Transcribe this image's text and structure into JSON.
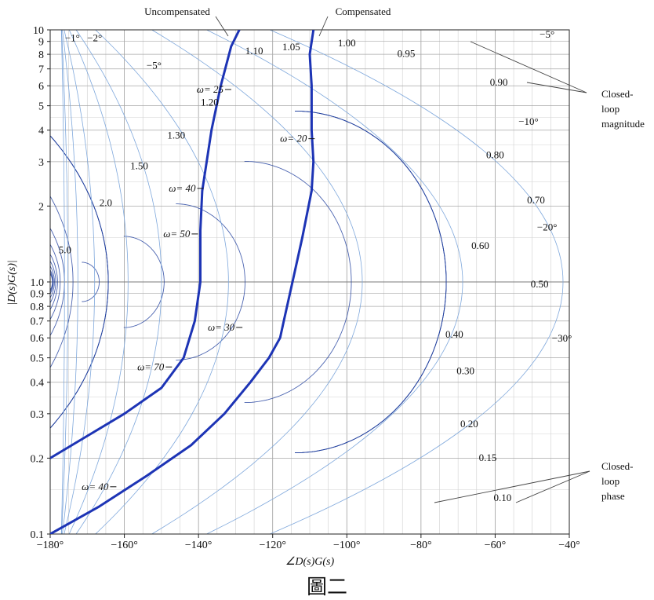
{
  "figure_caption": "圖二",
  "chart_data": {
    "type": "line",
    "chart_kind": "Nichols chart",
    "xlabel": "∠D(s)G(s)",
    "ylabel": "|D(s)G(s)|",
    "x_ticks": [
      -180,
      -160,
      -140,
      -120,
      -100,
      -80,
      -60,
      -40
    ],
    "x_tick_labels": [
      "−180°",
      "−160°",
      "−140°",
      "−120°",
      "−100°",
      "−80°",
      "−60°",
      "−40°"
    ],
    "y_ticks": [
      0.1,
      0.2,
      0.3,
      0.4,
      0.5,
      0.6,
      0.7,
      0.8,
      0.9,
      1.0,
      2,
      3,
      4,
      5,
      6,
      7,
      8,
      9,
      10
    ],
    "y_tick_labels": [
      "0.1",
      "0.2",
      "0.3",
      "0.4",
      "0.5",
      "0.6",
      "0.7",
      "0.8",
      "0.9",
      "1.0",
      "2",
      "3",
      "4",
      "5",
      "6",
      "7",
      "8",
      "9",
      "10"
    ],
    "xlim": [
      -180,
      -40
    ],
    "ylim": [
      0.1,
      10
    ],
    "yscale": "log",
    "grid": true,
    "closed_loop_magnitude_contours": [
      {
        "label": "1.10",
        "value": 1.1,
        "label_at": [
          -125,
          8.0
        ]
      },
      {
        "label": "1.05",
        "value": 1.05,
        "label_at": [
          -115,
          8.3
        ]
      },
      {
        "label": "1.00",
        "value": 1.0,
        "label_at": [
          -100,
          8.6
        ]
      },
      {
        "label": "0.95",
        "value": 0.95,
        "label_at": [
          -84,
          7.8
        ]
      },
      {
        "label": "0.90",
        "value": 0.9,
        "label_at": [
          -59,
          6.0
        ]
      },
      {
        "label": "0.80",
        "value": 0.8,
        "label_at": [
          -60,
          3.1
        ]
      },
      {
        "label": "0.70",
        "value": 0.7,
        "label_at": [
          -49,
          2.05
        ]
      },
      {
        "label": "0.60",
        "value": 0.6,
        "label_at": [
          -64,
          1.35
        ]
      },
      {
        "label": "0.50",
        "value": 0.5,
        "label_at": [
          -48,
          0.95
        ]
      },
      {
        "label": "0.40",
        "value": 0.4,
        "label_at": [
          -71,
          0.6
        ]
      },
      {
        "label": "0.30",
        "value": 0.3,
        "label_at": [
          -68,
          0.43
        ]
      },
      {
        "label": "0.20",
        "value": 0.2,
        "label_at": [
          -67,
          0.265
        ]
      },
      {
        "label": "0.15",
        "value": 0.15,
        "label_at": [
          -62,
          0.195
        ]
      },
      {
        "label": "0.10",
        "value": 0.1,
        "label_at": [
          -58,
          0.135
        ]
      },
      {
        "label": "1.20",
        "value": 1.2,
        "label_at": [
          -137,
          5.0
        ]
      },
      {
        "label": "1.30",
        "value": 1.3,
        "label_at": [
          -146,
          3.7
        ]
      },
      {
        "label": "1.50",
        "value": 1.5,
        "label_at": [
          -156,
          2.8
        ]
      },
      {
        "label": "2.0",
        "value": 2.0,
        "label_at": [
          -165,
          2.0
        ]
      },
      {
        "label": "5.0",
        "value": 5.0,
        "label_at": [
          -176,
          1.3
        ]
      }
    ],
    "closed_loop_phase_contours": [
      {
        "label": "−1°",
        "value": -1,
        "label_at": [
          -174,
          9.0
        ]
      },
      {
        "label": "−2°",
        "value": -2,
        "label_at": [
          -168,
          9.0
        ]
      },
      {
        "label": "−5°",
        "value": -5,
        "label_at": [
          -152,
          7.0
        ]
      },
      {
        "label": "−5°",
        "value": -5,
        "label_at": [
          -46,
          9.3
        ]
      },
      {
        "label": "−10°",
        "value": -10,
        "label_at": [
          -51,
          4.2
        ]
      },
      {
        "label": "−20°",
        "value": -20,
        "label_at": [
          -46,
          1.6
        ]
      },
      {
        "label": "−30°",
        "value": -30,
        "label_at": [
          -42,
          0.58
        ]
      }
    ],
    "series": [
      {
        "name": "Uncompensated",
        "x": [
          -180,
          -170,
          -160,
          -150,
          -144,
          -141,
          -139.5,
          -139.5,
          -139,
          -136.5,
          -134,
          -131.2,
          -129
        ],
        "y": [
          0.2,
          0.245,
          0.3,
          0.38,
          0.5,
          0.7,
          1.0,
          1.6,
          2.3,
          4.0,
          6.0,
          8.6,
          10
        ]
      },
      {
        "name": "Compensated",
        "x": [
          -180,
          -167,
          -154,
          -142,
          -133,
          -126,
          -121,
          -118,
          -117,
          -115,
          -112,
          -109.5,
          -109,
          -109.5,
          -109.5,
          -110,
          -109
        ],
        "y": [
          0.1,
          0.128,
          0.17,
          0.225,
          0.3,
          0.4,
          0.5,
          0.6,
          0.7,
          0.95,
          1.5,
          2.3,
          3.0,
          4.0,
          6.0,
          8.0,
          10
        ]
      }
    ],
    "annotations": [
      {
        "text": "ω= 25",
        "x": -132,
        "y": 5.8
      },
      {
        "text": "ω= 40",
        "x": -139.5,
        "y": 2.35
      },
      {
        "text": "ω= 50",
        "x": -141,
        "y": 1.55
      },
      {
        "text": "ω= 70",
        "x": -148,
        "y": 0.46
      },
      {
        "text": "ω= 20",
        "x": -109.5,
        "y": 3.7
      },
      {
        "text": "ω= 30",
        "x": -129,
        "y": 0.66
      },
      {
        "text": "ω= 40",
        "x": -163,
        "y": 0.154
      },
      {
        "text": "Uncompensated",
        "x": -130,
        "y": 10
      },
      {
        "text": "Compensated",
        "x": -110,
        "y": 10
      },
      {
        "text": "Closed-",
        "x": -40,
        "y": 5.6
      },
      {
        "text": "loop",
        "x": -40,
        "y": 5.6
      },
      {
        "text": "magnitude",
        "x": -40,
        "y": 5.6
      },
      {
        "text": "Closed-",
        "x": -40,
        "y": 0.165
      },
      {
        "text": "loop",
        "x": -40,
        "y": 0.165
      },
      {
        "text": "phase",
        "x": -40,
        "y": 0.165
      }
    ]
  }
}
